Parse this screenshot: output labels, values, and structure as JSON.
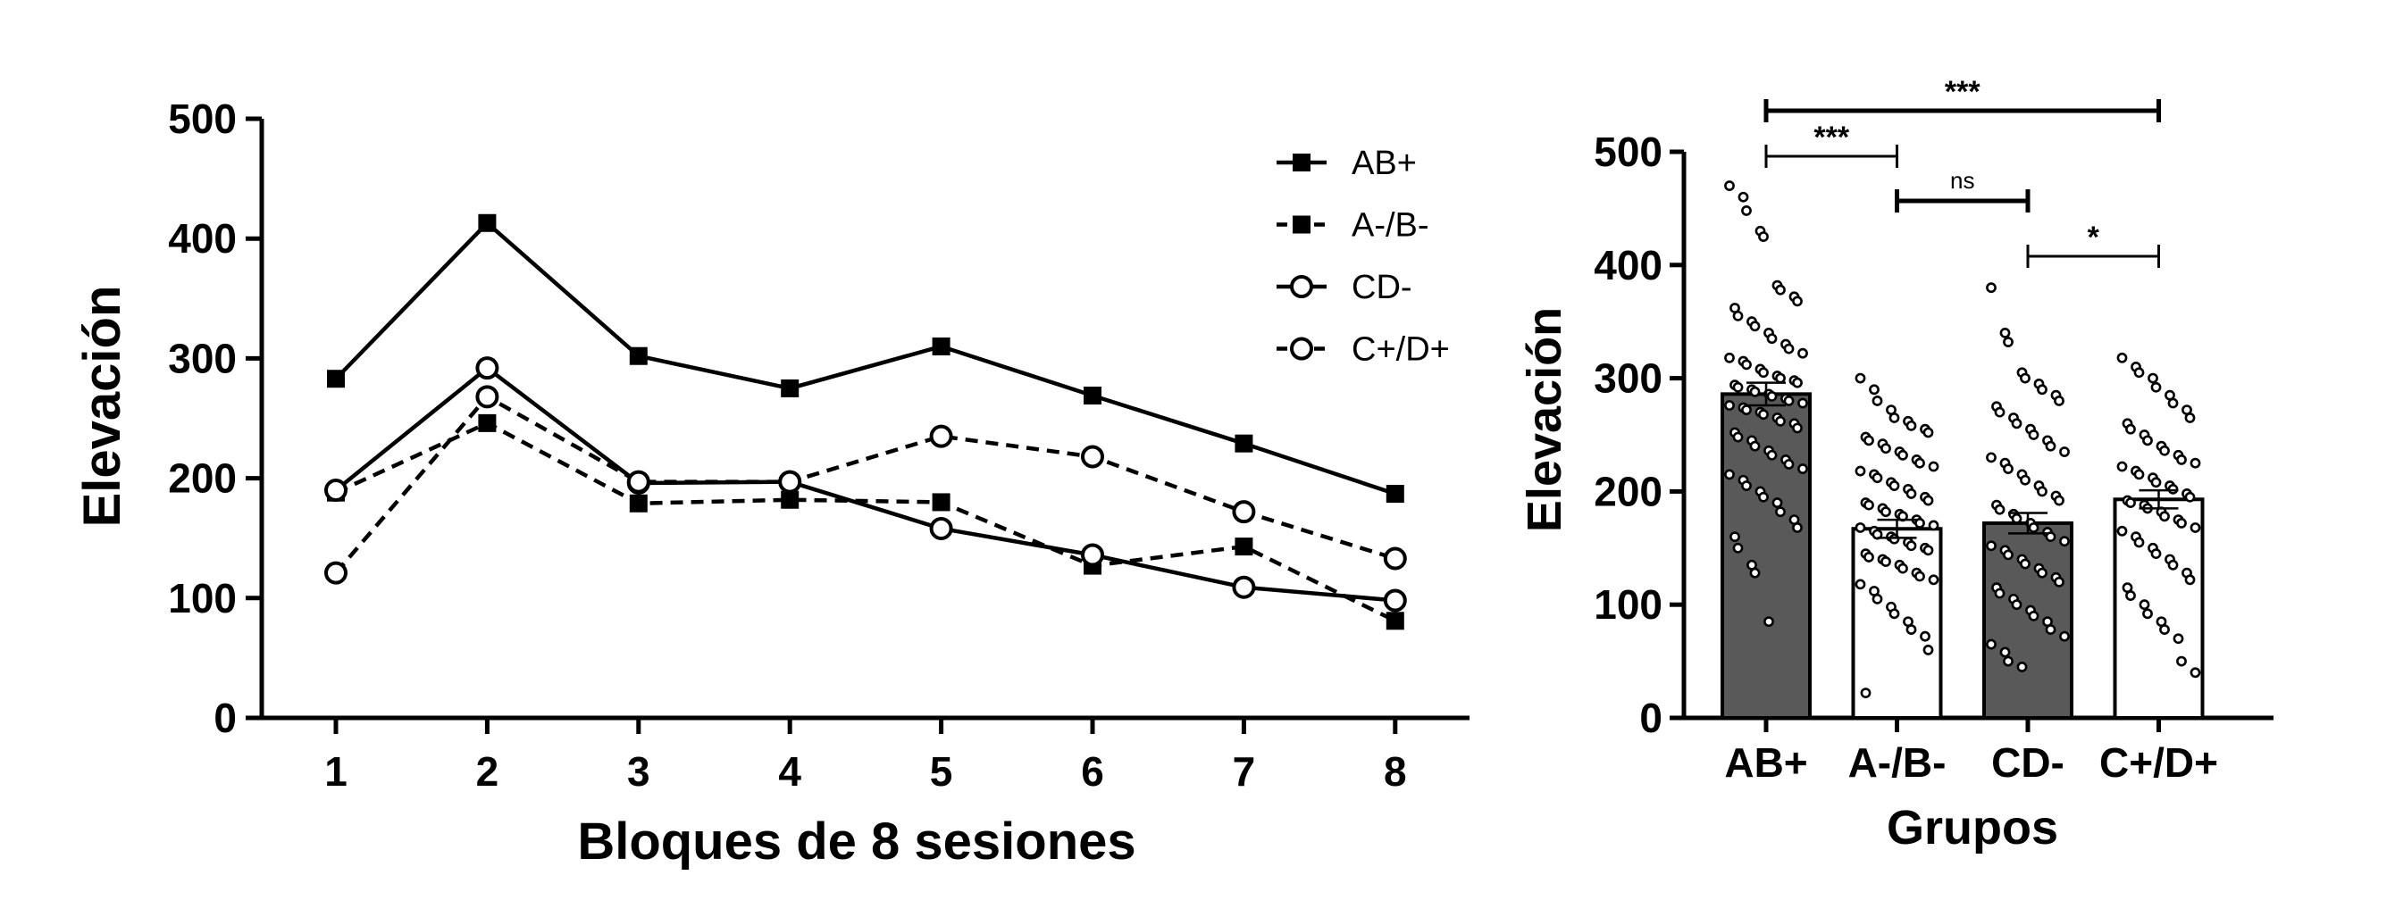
{
  "chart_data": [
    {
      "type": "line",
      "title": "",
      "xlabel": "Bloques de 8 sesiones",
      "ylabel": "Elevación",
      "ylim": [
        0,
        500
      ],
      "yticks": [
        "0",
        "100",
        "200",
        "300",
        "400",
        "500"
      ],
      "categories": [
        "1",
        "2",
        "3",
        "4",
        "5",
        "6",
        "7",
        "8"
      ],
      "legend_position": "top-right",
      "series": [
        {
          "name": "AB+",
          "marker": "filled-square",
          "line": "solid",
          "values": [
            283,
            413,
            302,
            275,
            310,
            269,
            229,
            187
          ]
        },
        {
          "name": "A-/B-",
          "marker": "filled-square",
          "line": "dashed",
          "values": [
            188,
            246,
            179,
            182,
            180,
            127,
            143,
            81
          ]
        },
        {
          "name": "CD-",
          "marker": "open-circle",
          "line": "solid",
          "values": [
            190,
            292,
            196,
            197,
            158,
            136,
            109,
            98
          ]
        },
        {
          "name": "C+/D+",
          "marker": "open-circle",
          "line": "dashed",
          "values": [
            121,
            268,
            197,
            197,
            235,
            218,
            172,
            133
          ]
        }
      ]
    },
    {
      "type": "bar",
      "title": "",
      "xlabel": "Grupos",
      "ylabel": "Elevación",
      "ylim": [
        0,
        500
      ],
      "yticks": [
        "0",
        "100",
        "200",
        "300",
        "400",
        "500"
      ],
      "categories": [
        "AB+",
        "A-/B-",
        "CD-",
        "C+/D+"
      ],
      "values": [
        286,
        167,
        172,
        193
      ],
      "sem": [
        10,
        8,
        9,
        8
      ],
      "bar_colors": [
        "#595959",
        "#ffffff",
        "#595959",
        "#ffffff"
      ],
      "points": [
        [
          470,
          460,
          448,
          430,
          425,
          382,
          378,
          372,
          368,
          362,
          355,
          350,
          346,
          340,
          335,
          330,
          326,
          322,
          318,
          315,
          312,
          308,
          305,
          302,
          300,
          298,
          296,
          294,
          292,
          290,
          288,
          286,
          284,
          282,
          280,
          278,
          276,
          274,
          272,
          270,
          268,
          265,
          262,
          260,
          256,
          252,
          248,
          245,
          240,
          236,
          232,
          228,
          224,
          220,
          215,
          210,
          205,
          200,
          195,
          190,
          182,
          175,
          168,
          160,
          150,
          135,
          128,
          85
        ],
        [
          300,
          290,
          280,
          272,
          265,
          262,
          258,
          255,
          252,
          248,
          245,
          242,
          238,
          235,
          232,
          228,
          225,
          222,
          218,
          215,
          212,
          208,
          205,
          202,
          198,
          195,
          192,
          190,
          188,
          185,
          182,
          180,
          178,
          175,
          172,
          170,
          168,
          165,
          162,
          160,
          158,
          155,
          152,
          150,
          148,
          145,
          142,
          140,
          138,
          135,
          132,
          128,
          125,
          122,
          118,
          112,
          105,
          98,
          92,
          85,
          78,
          72,
          60,
          22
        ],
        [
          380,
          340,
          332,
          305,
          300,
          295,
          290,
          285,
          280,
          275,
          270,
          265,
          260,
          255,
          250,
          245,
          240,
          235,
          230,
          225,
          220,
          215,
          210,
          205,
          200,
          196,
          192,
          188,
          184,
          180,
          176,
          172,
          168,
          164,
          160,
          156,
          152,
          148,
          144,
          140,
          136,
          132,
          128,
          124,
          120,
          115,
          110,
          105,
          100,
          95,
          90,
          85,
          78,
          72,
          65,
          58,
          50,
          45
        ],
        [
          318,
          310,
          305,
          300,
          292,
          285,
          278,
          272,
          265,
          260,
          255,
          250,
          245,
          240,
          236,
          232,
          228,
          225,
          222,
          218,
          215,
          212,
          208,
          205,
          202,
          198,
          195,
          192,
          190,
          188,
          185,
          182,
          178,
          175,
          172,
          168,
          165,
          160,
          155,
          150,
          145,
          140,
          135,
          128,
          122,
          115,
          108,
          100,
          92,
          85,
          78,
          70,
          50,
          40
        ]
      ],
      "significance": [
        {
          "from": 0,
          "to": 3,
          "label": "***"
        },
        {
          "from": 0,
          "to": 1,
          "label": "***"
        },
        {
          "from": 1,
          "to": 2,
          "label": "ns"
        },
        {
          "from": 2,
          "to": 3,
          "label": "*"
        }
      ]
    }
  ]
}
